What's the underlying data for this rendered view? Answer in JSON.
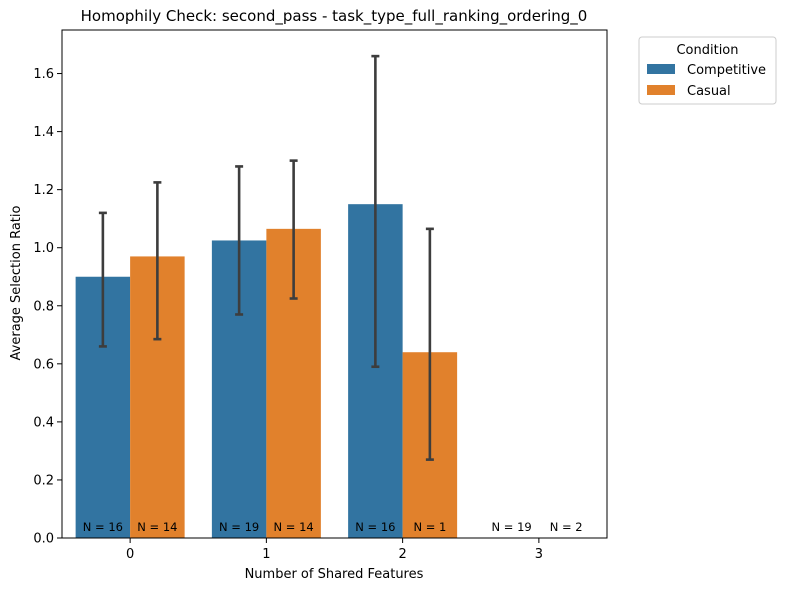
{
  "chart_data": {
    "type": "bar",
    "title": "Homophily Check: second_pass - task_type_full_ranking_ordering_0",
    "xlabel": "Number of Shared Features",
    "ylabel": "Average Selection Ratio",
    "categories": [
      "0",
      "1",
      "2",
      "3"
    ],
    "ylim": [
      0,
      1.75
    ],
    "yticks": [
      "0.0",
      "0.2",
      "0.4",
      "0.6",
      "0.8",
      "1.0",
      "1.2",
      "1.4",
      "1.6"
    ],
    "legend": {
      "title": "Condition",
      "placement": "outside-top-right"
    },
    "series": [
      {
        "name": "Competitive",
        "color": "#3274a1",
        "values": [
          0.9,
          1.025,
          1.15,
          null
        ],
        "error_low": [
          0.66,
          0.77,
          0.59,
          null
        ],
        "error_high": [
          1.12,
          1.28,
          1.66,
          null
        ],
        "n_labels": [
          "N = 16",
          "N = 19",
          "N = 16",
          "N = 19"
        ]
      },
      {
        "name": "Casual",
        "color": "#e1812c",
        "values": [
          0.97,
          1.065,
          0.64,
          null
        ],
        "error_low": [
          0.685,
          0.825,
          0.27,
          null
        ],
        "error_high": [
          1.225,
          1.3,
          1.065,
          null
        ],
        "n_labels": [
          "N = 14",
          "N = 14",
          "N = 1",
          "N = 2"
        ]
      }
    ],
    "grid": false
  }
}
